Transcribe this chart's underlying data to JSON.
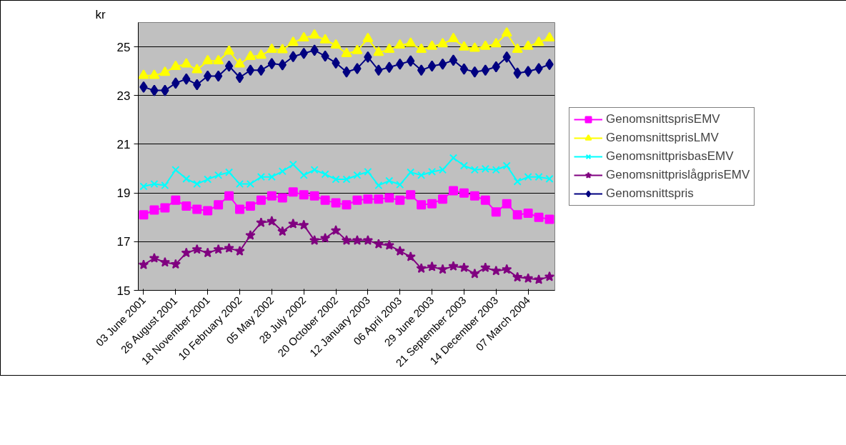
{
  "chart_data": {
    "type": "line",
    "ylabel": "kr",
    "categories": [
      "03 June 2001",
      null,
      null,
      "26 August 2001",
      null,
      null,
      "18 November 2001",
      null,
      null,
      "10 February 2002",
      null,
      null,
      "05 May 2002",
      null,
      null,
      "28 July 2002",
      null,
      null,
      "20 October 2002",
      null,
      null,
      "12 January 2003",
      null,
      null,
      "06 April 2003",
      null,
      null,
      "29 June 2003",
      null,
      null,
      "21 September 2003",
      null,
      null,
      "14 December 2003",
      null,
      null,
      "07 March 2004",
      null,
      null
    ],
    "ylim": [
      15,
      26
    ],
    "yticks": [
      15,
      17,
      19,
      21,
      23,
      25
    ],
    "grid": "y",
    "legend": "right",
    "series": [
      {
        "name": "GenomsnittsprisEMV",
        "color": "#ff00ff",
        "marker": "square",
        "values": [
          18.1,
          18.3,
          18.39,
          18.7,
          18.46,
          18.33,
          18.27,
          18.51,
          18.88,
          18.33,
          18.46,
          18.7,
          18.88,
          18.8,
          19.04,
          18.92,
          18.88,
          18.7,
          18.59,
          18.51,
          18.7,
          18.75,
          18.75,
          18.8,
          18.7,
          18.92,
          18.51,
          18.56,
          18.75,
          19.09,
          19.0,
          18.88,
          18.7,
          18.22,
          18.56,
          18.1,
          18.17,
          18.0,
          17.92
        ]
      },
      {
        "name": "GenomsnittsprisLMV",
        "color": "#ffff00",
        "marker": "triangle",
        "values": [
          23.82,
          23.82,
          23.95,
          24.19,
          24.29,
          24.06,
          24.42,
          24.42,
          24.82,
          24.29,
          24.6,
          24.65,
          24.89,
          24.88,
          25.18,
          25.36,
          25.48,
          25.28,
          25.07,
          24.72,
          24.84,
          25.33,
          24.77,
          24.89,
          25.07,
          25.14,
          24.89,
          25.02,
          25.12,
          25.33,
          24.99,
          24.94,
          25.02,
          25.12,
          25.56,
          24.89,
          25.02,
          25.18,
          25.36
        ]
      },
      {
        "name": "GenomsnittprisbasEMV",
        "color": "#00ffff",
        "marker": "cross",
        "values": [
          19.27,
          19.37,
          19.31,
          19.95,
          19.58,
          19.37,
          19.56,
          19.73,
          19.85,
          19.37,
          19.37,
          19.66,
          19.66,
          19.89,
          20.17,
          19.73,
          19.95,
          19.77,
          19.56,
          19.56,
          19.73,
          19.87,
          19.31,
          19.5,
          19.34,
          19.85,
          19.73,
          19.87,
          19.95,
          20.44,
          20.12,
          19.95,
          19.99,
          19.95,
          20.12,
          19.47,
          19.66,
          19.66,
          19.58
        ]
      },
      {
        "name": "GenomsnittprislågprisEMV",
        "color": "#800080",
        "marker": "star",
        "values": [
          16.05,
          16.32,
          16.15,
          16.07,
          16.54,
          16.68,
          16.54,
          16.68,
          16.73,
          16.61,
          17.26,
          17.78,
          17.84,
          17.42,
          17.73,
          17.68,
          17.05,
          17.14,
          17.46,
          17.05,
          17.05,
          17.05,
          16.9,
          16.85,
          16.61,
          16.38,
          15.9,
          15.97,
          15.86,
          15.99,
          15.93,
          15.68,
          15.93,
          15.8,
          15.86,
          15.54,
          15.49,
          15.44,
          15.56
        ]
      },
      {
        "name": "Genomsnittspris",
        "color": "#000080",
        "marker": "diamond",
        "values": [
          23.35,
          23.21,
          23.21,
          23.51,
          23.68,
          23.45,
          23.8,
          23.8,
          24.21,
          23.74,
          24.04,
          24.04,
          24.31,
          24.26,
          24.6,
          24.73,
          24.86,
          24.62,
          24.34,
          23.97,
          24.11,
          24.58,
          24.04,
          24.16,
          24.29,
          24.42,
          24.04,
          24.21,
          24.29,
          24.45,
          24.09,
          23.97,
          24.04,
          24.18,
          24.58,
          23.92,
          23.99,
          24.11,
          24.28
        ]
      }
    ]
  }
}
